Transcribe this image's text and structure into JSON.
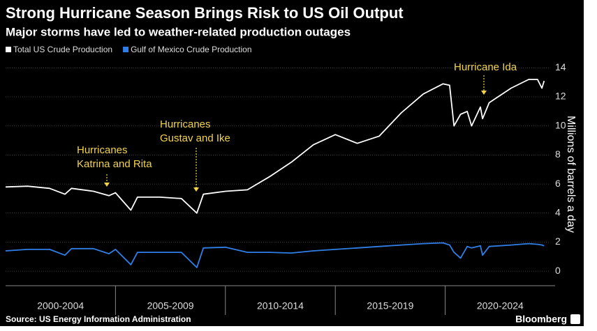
{
  "chart_data": {
    "type": "line",
    "title": "Strong Hurricane Season Brings Risk to US Oil Output",
    "subtitle": "Major storms have led to weather-related production outages",
    "y_axis_label": "Millions of barrels a day",
    "source": "Source: US Energy Information Administration",
    "brand": "Bloomberg",
    "x_periods": [
      "2000-2004",
      "2005-2009",
      "2010-2014",
      "2015-2019",
      "2020-2024"
    ],
    "x": [
      2000,
      2001,
      2002,
      2002.7,
      2003,
      2004,
      2004.7,
      2005,
      2005.7,
      2006,
      2007,
      2008,
      2008.7,
      2009,
      2010,
      2011,
      2012,
      2013,
      2014,
      2015,
      2016,
      2017,
      2018,
      2019,
      2019.9,
      2020.2,
      2020.4,
      2020.7,
      2021,
      2021.2,
      2021.6,
      2021.7,
      2022,
      2023,
      2023.8,
      2024.2,
      2024.4,
      2024.5
    ],
    "xlim": [
      2000,
      2025
    ],
    "series": [
      {
        "name": "Total US Crude Production",
        "color": "#ffffff",
        "values": [
          5.8,
          5.85,
          5.7,
          5.3,
          5.7,
          5.5,
          5.2,
          5.4,
          4.2,
          5.1,
          5.1,
          5.0,
          4.0,
          5.3,
          5.5,
          5.6,
          6.5,
          7.5,
          8.7,
          9.4,
          8.8,
          9.3,
          10.9,
          12.2,
          12.9,
          12.8,
          10.0,
          10.8,
          11.0,
          10.0,
          11.3,
          10.5,
          11.6,
          12.6,
          13.2,
          13.2,
          12.6,
          13.1
        ]
      },
      {
        "name": "Gulf of Mexico Crude Production",
        "color": "#2f7fe6",
        "values": [
          1.4,
          1.5,
          1.5,
          1.1,
          1.55,
          1.55,
          1.2,
          1.5,
          0.45,
          1.3,
          1.3,
          1.3,
          0.25,
          1.6,
          1.65,
          1.3,
          1.3,
          1.25,
          1.4,
          1.5,
          1.6,
          1.7,
          1.8,
          1.9,
          1.95,
          1.8,
          1.3,
          0.9,
          1.7,
          1.6,
          1.75,
          1.1,
          1.7,
          1.8,
          1.9,
          1.85,
          1.8,
          1.75
        ]
      }
    ],
    "ylim": [
      -1,
      14.4
    ],
    "yticks": [
      0,
      2,
      4,
      6,
      8,
      10,
      12,
      14
    ],
    "grid": true,
    "annotations": [
      {
        "lines": [
          "Hurricanes",
          "Katrina and Rita"
        ]
      },
      {
        "lines": [
          "Hurricanes",
          "Gustav and Ike"
        ]
      },
      {
        "lines": [
          "Hurricane Ida"
        ]
      }
    ]
  }
}
